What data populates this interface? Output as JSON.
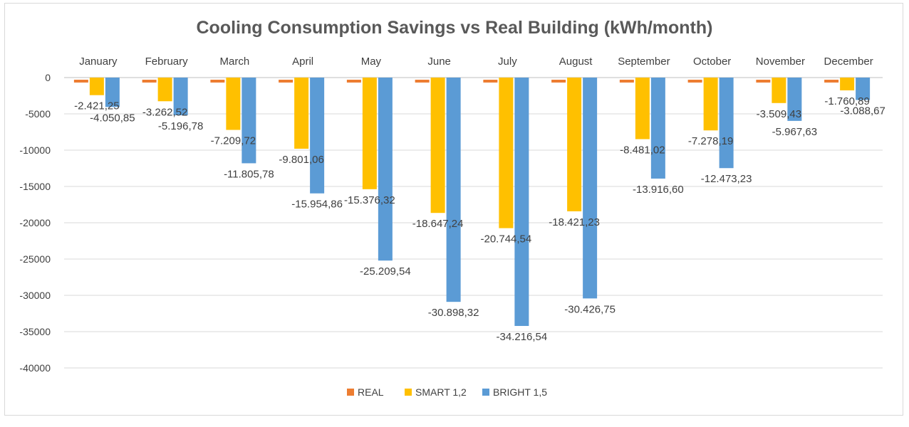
{
  "chart_data": {
    "type": "bar",
    "title": "Cooling Consumption Savings vs Real Building (kWh/month)",
    "xlabel": "",
    "ylabel": "",
    "categories": [
      "January",
      "February",
      "March",
      "April",
      "May",
      "June",
      "July",
      "August",
      "September",
      "October",
      "November",
      "December"
    ],
    "ylim": [
      -40000,
      0
    ],
    "yticks": [
      0,
      -5000,
      -10000,
      -15000,
      -20000,
      -25000,
      -30000,
      -35000,
      -40000
    ],
    "ytick_labels": [
      "0",
      "-5000",
      "-10000",
      "-15000",
      "-20000",
      "-25000",
      "-30000",
      "-35000",
      "-40000"
    ],
    "grid": true,
    "legend_position": "bottom",
    "series": [
      {
        "name": "REAL",
        "color": "#ED7D31",
        "values": [
          -500,
          -400,
          -500,
          -400,
          -400,
          -500,
          -400,
          -500,
          -400,
          -500,
          -500,
          -500
        ],
        "labels": []
      },
      {
        "name": "SMART 1,2",
        "color": "#FFC000",
        "values": [
          -2421.25,
          -3262.52,
          -7209.72,
          -9801.06,
          -15376.32,
          -18647.24,
          -20744.54,
          -18421.23,
          -8481.02,
          -7278.19,
          -3509.43,
          -1760.89
        ],
        "labels": [
          "-2.421,25",
          "-3.262,52",
          "-7.209,72",
          "-9.801,06",
          "-15.376,32",
          "-18.647,24",
          "-20.744,54",
          "-18.421,23",
          "-8.481,02",
          "-7.278,19",
          "-3.509,43",
          "-1.760,89"
        ]
      },
      {
        "name": "BRIGHT 1,5",
        "color": "#5B9BD5",
        "values": [
          -4050.85,
          -5196.78,
          -11805.78,
          -15954.86,
          -25209.54,
          -30898.32,
          -34216.54,
          -30426.75,
          -13916.6,
          -12473.23,
          -5967.63,
          -3088.67
        ],
        "labels": [
          "-4.050,85",
          "-5.196,78",
          "-11.805,78",
          "-15.954,86",
          "-25.209,54",
          "-30.898,32",
          "-34.216,54",
          "-30.426,75",
          "-13.916,60",
          "-12.473,23",
          "-5.967,63",
          "-3.088,67"
        ]
      }
    ]
  }
}
